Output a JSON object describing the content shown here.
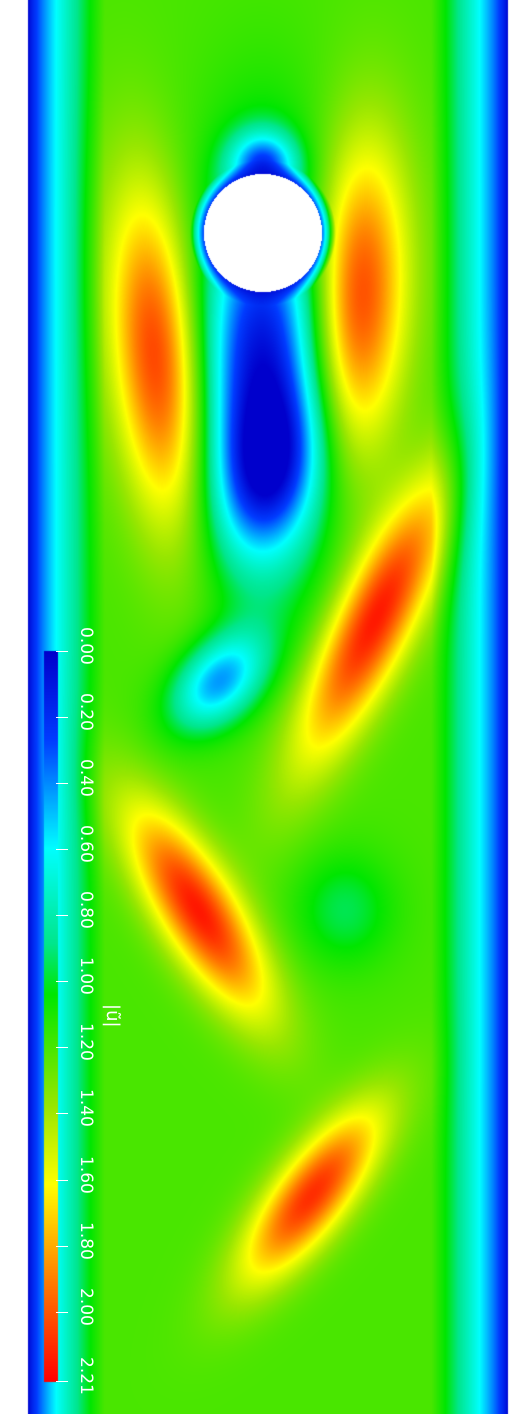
{
  "figure": {
    "quantity_label": "|ũ|",
    "colormap": [
      "#0000cc",
      "#0070ff",
      "#00ffff",
      "#00ff00",
      "#d0ff00",
      "#ffff00",
      "#ff8000",
      "#ff0000"
    ],
    "background": "#ffffff"
  },
  "colorbar": {
    "min": 0.0,
    "max": 2.21,
    "ticks": [
      {
        "value": 0.0,
        "label": "0.00"
      },
      {
        "value": 0.2,
        "label": "0.20"
      },
      {
        "value": 0.4,
        "label": "0.40"
      },
      {
        "value": 0.6,
        "label": "0.60"
      },
      {
        "value": 0.8,
        "label": "0.80"
      },
      {
        "value": 1.0,
        "label": "1.00"
      },
      {
        "value": 1.2,
        "label": "1.20"
      },
      {
        "value": 1.4,
        "label": "1.40"
      },
      {
        "value": 1.6,
        "label": "1.60"
      },
      {
        "value": 1.8,
        "label": "1.80"
      },
      {
        "value": 2.0,
        "label": "2.00"
      },
      {
        "value": 2.21,
        "label": "2.21"
      }
    ]
  }
}
